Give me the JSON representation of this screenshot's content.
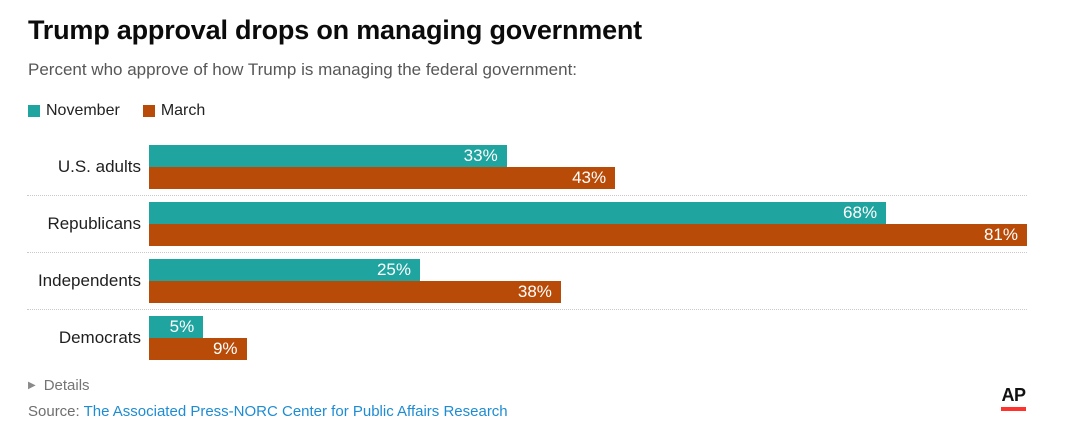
{
  "header": {
    "title": "Trump approval drops on managing government",
    "subtitle": "Percent who approve of how Trump is managing the federal government:"
  },
  "legend": {
    "items": [
      {
        "label": "November",
        "color": "#1FA4A0"
      },
      {
        "label": "March",
        "color": "#B94B08"
      }
    ]
  },
  "chart_data": {
    "type": "bar",
    "orientation": "horizontal",
    "title": "Trump approval drops on managing government",
    "subtitle": "Percent who approve of how Trump is managing the federal government:",
    "categories": [
      "U.S. adults",
      "Republicans",
      "Independents",
      "Democrats"
    ],
    "series": [
      {
        "name": "November",
        "color": "#1FA4A0",
        "values": [
          33,
          68,
          25,
          5
        ]
      },
      {
        "name": "March",
        "color": "#B94B08",
        "values": [
          43,
          81,
          38,
          9
        ]
      }
    ],
    "value_suffix": "%",
    "xlim": [
      0,
      81
    ],
    "value_labels": "inside-end",
    "legend_position": "top-left",
    "grid": "dotted-row-separators"
  },
  "footer": {
    "details_label": "Details",
    "triangle_icon": "▶",
    "source_prefix": "Source: ",
    "source_link": "The Associated Press-NORC Center for Public Affairs Research",
    "source_link_color": "#1E8CD3",
    "logo_text": "AP",
    "logo_underline_color": "#FF322E"
  }
}
